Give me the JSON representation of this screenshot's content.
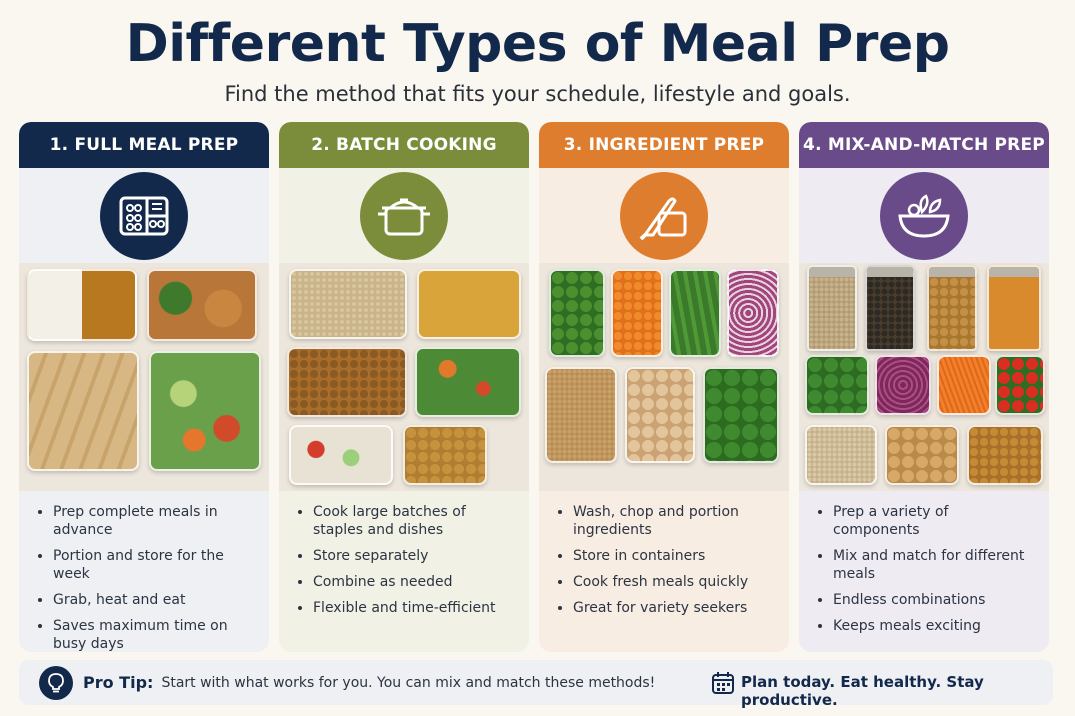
{
  "header": {
    "title": "Different Types of Meal Prep",
    "subtitle": "Find the method that fits your schedule, lifestyle and goals."
  },
  "cards": [
    {
      "heading": "1. FULL MEAL PREP",
      "icon": "bento-box-icon",
      "color": "#13294b",
      "bullets": [
        "Prep complete meals in advance",
        "Portion and store for the week",
        "Grab, heat and eat",
        "Saves maximum time on busy days"
      ]
    },
    {
      "heading": "2. BATCH COOKING",
      "icon": "cooking-pot-icon",
      "color": "#7b8d3a",
      "bullets": [
        "Cook large batches of staples and dishes",
        "Store separately",
        "Combine as needed",
        "Flexible and time-efficient"
      ]
    },
    {
      "heading": "3. INGREDIENT PREP",
      "icon": "knife-board-icon",
      "color": "#df7d2e",
      "bullets": [
        "Wash, chop and portion ingredients",
        "Store in containers",
        "Cook fresh meals quickly",
        "Great for variety seekers"
      ]
    },
    {
      "heading": "4. MIX-AND-MATCH PREP",
      "icon": "salad-bowl-icon",
      "color": "#6a4b8a",
      "bullets": [
        "Prep a variety of components",
        "Mix and match for different meals",
        "Endless combinations",
        "Keeps meals exciting"
      ]
    }
  ],
  "footer": {
    "tip_label": "Pro Tip:",
    "tip_text": "Start with what works for you. You can mix and match these methods!",
    "tagline": "Plan today. Eat healthy. Stay productive.",
    "icons": [
      "lightbulb-icon",
      "calendar-icon"
    ]
  }
}
